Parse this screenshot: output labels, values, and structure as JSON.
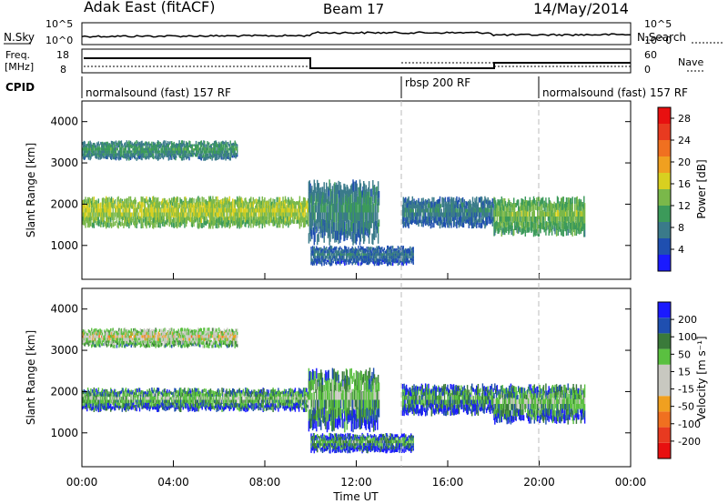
{
  "header": {
    "radar": "Adak East (fitACF)",
    "beam": "Beam 17",
    "date": "14/May/2014"
  },
  "panels": {
    "noise": {
      "left_label": "N.Sky",
      "right_label": "N.Search",
      "left_ticks": [
        "10^5",
        "10^0"
      ],
      "right_ticks": [
        "10^5",
        "10^0"
      ]
    },
    "freq": {
      "left_label_1": "Freq.",
      "left_label_2": "[MHz]",
      "right_label": "Nave",
      "left_ticks": [
        "18",
        "8"
      ],
      "right_ticks": [
        "60",
        "0"
      ]
    },
    "cpid": {
      "label": "CPID",
      "segments": [
        {
          "text": "normalsound (fast) 157 RF",
          "start_hour": 0
        },
        {
          "text": "rbsp 200 RF",
          "start_hour": 14
        },
        {
          "text": "normalsound (fast) 157 RF",
          "start_hour": 20
        }
      ]
    }
  },
  "chart_data": [
    {
      "type": "heatmap",
      "name": "Power",
      "ylabel": "Slant Range [km]",
      "ylim": [
        180,
        4500
      ],
      "yticks": [
        1000,
        2000,
        3000,
        4000
      ],
      "colorbar_label": "Power [dB]",
      "colorbar_ticks": [
        4,
        8,
        12,
        16,
        20,
        24,
        28
      ],
      "colorbar_range": [
        0,
        30
      ],
      "colors": [
        "#1a1aff",
        "#1f4fb0",
        "#3a7a8a",
        "#3c9a5a",
        "#7ab84a",
        "#d8d020",
        "#f0a020",
        "#f07020",
        "#e83a20",
        "#e81010"
      ],
      "bands": [
        {
          "t0": 0.0,
          "t1": 9.9,
          "r0": 1400,
          "r1": 2200,
          "level": 14
        },
        {
          "t0": 0.0,
          "t1": 6.8,
          "r0": 3050,
          "r1": 3550,
          "level": 9
        },
        {
          "t0": 9.9,
          "t1": 13.0,
          "r0": 1000,
          "r1": 2600,
          "level": 8
        },
        {
          "t0": 10.0,
          "t1": 14.5,
          "r0": 500,
          "r1": 1000,
          "level": 6
        },
        {
          "t0": 14.0,
          "t1": 18.0,
          "r0": 1400,
          "r1": 2200,
          "level": 7
        },
        {
          "t0": 18.0,
          "t1": 22.0,
          "r0": 1200,
          "r1": 2200,
          "level": 12
        }
      ]
    },
    {
      "type": "heatmap",
      "name": "Velocity",
      "ylabel": "Slant Range [km]",
      "xlabel": "Time UT",
      "ylim": [
        180,
        4500
      ],
      "yticks": [
        1000,
        2000,
        3000,
        4000
      ],
      "xticks": [
        "00:00",
        "04:00",
        "08:00",
        "12:00",
        "16:00",
        "20:00",
        "00:00"
      ],
      "colorbar_label": "Velocity [m s⁻¹]",
      "colorbar_ticks": [
        200,
        100,
        50,
        15,
        -15,
        -50,
        -100,
        -200
      ],
      "colors": [
        "#1a1aff",
        "#1f4fb0",
        "#3a7a3a",
        "#5ac040",
        "#c8c8c0",
        "#c8c8c0",
        "#f0a020",
        "#f07020",
        "#e83a20",
        "#e81010"
      ],
      "bands": [
        {
          "t0": 0.0,
          "t1": 9.9,
          "r0": 1500,
          "r1": 2100,
          "level": 4
        },
        {
          "t0": 0.0,
          "t1": 6.8,
          "r0": 3050,
          "r1": 3550,
          "level": 6
        },
        {
          "t0": 9.9,
          "t1": 13.0,
          "r0": 1000,
          "r1": 2600,
          "level": 4
        },
        {
          "t0": 10.0,
          "t1": 14.5,
          "r0": 500,
          "r1": 1000,
          "level": 3
        },
        {
          "t0": 14.0,
          "t1": 18.0,
          "r0": 1400,
          "r1": 2200,
          "level": 3
        },
        {
          "t0": 18.0,
          "t1": 22.0,
          "r0": 1200,
          "r1": 2200,
          "level": 4
        }
      ]
    }
  ]
}
